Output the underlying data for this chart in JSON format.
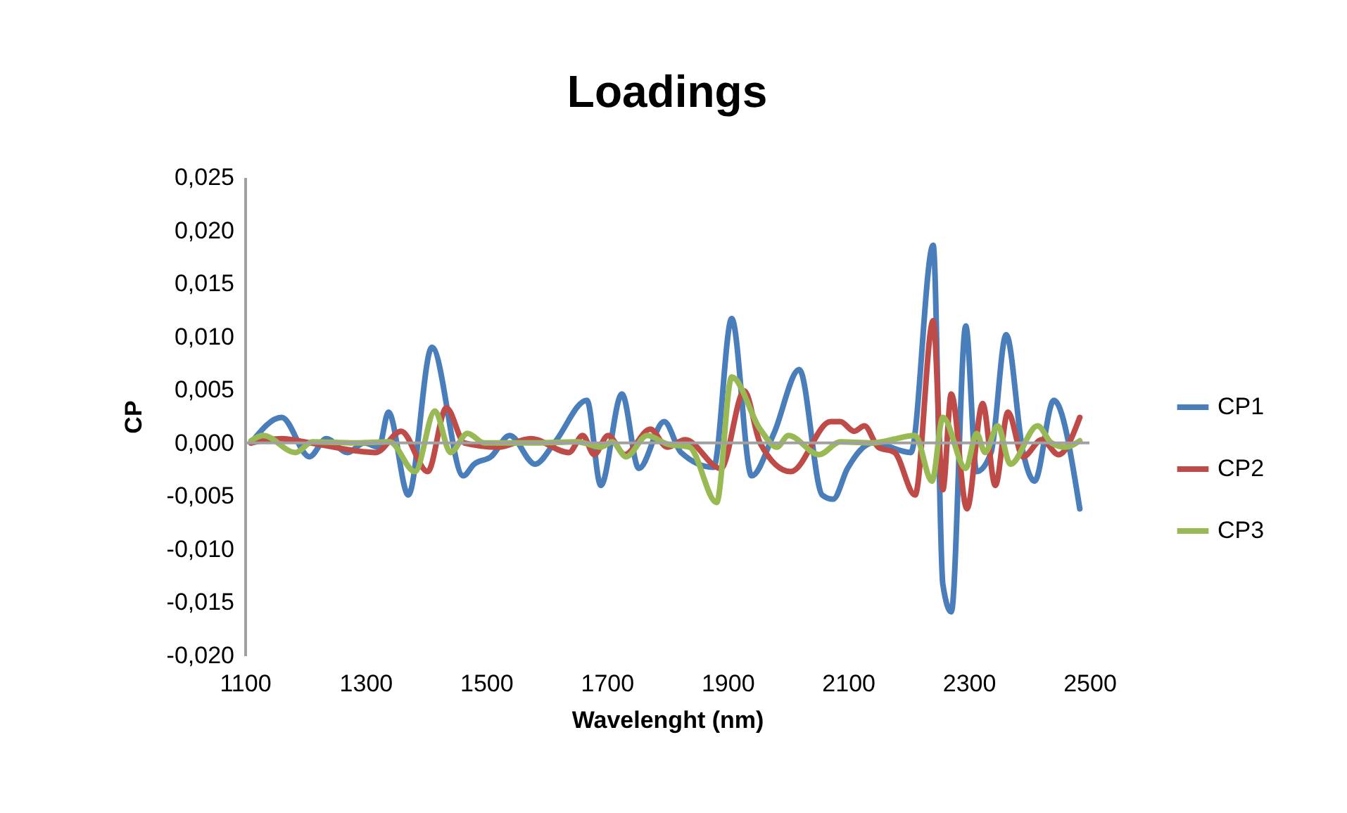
{
  "chart_data": {
    "type": "line",
    "title": "Loadings",
    "xlabel": "Wavelenght (nm)",
    "ylabel": "CP",
    "xlim": [
      1100,
      2500
    ],
    "xticks": [
      1100,
      1300,
      1500,
      1700,
      1900,
      2100,
      2300,
      2500
    ],
    "ylim": [
      -0.02,
      0.025
    ],
    "yticks": [
      {
        "value": -0.02,
        "label": "-0,020"
      },
      {
        "value": -0.015,
        "label": "-0,015"
      },
      {
        "value": -0.01,
        "label": "-0,010"
      },
      {
        "value": -0.005,
        "label": "-0,005"
      },
      {
        "value": 0,
        "label": "0,000"
      },
      {
        "value": 0.005,
        "label": "0,005"
      },
      {
        "value": 0.01,
        "label": "0,010"
      },
      {
        "value": 0.015,
        "label": "0,015"
      },
      {
        "value": 0.02,
        "label": "0,020"
      },
      {
        "value": 0.025,
        "label": "0,025"
      }
    ],
    "grid": false,
    "legend": "right",
    "line_style": "solid",
    "marker": "none",
    "ref_lines": [
      {
        "axis": "y",
        "value": 0,
        "color": "#a0a0a0"
      }
    ],
    "series": [
      {
        "name": "CP1",
        "color": "#4a7ebb",
        "x": [
          1110,
          1161,
          1207,
          1235,
          1270,
          1298,
          1322,
          1338,
          1371,
          1410,
          1462,
          1480,
          1508,
          1539,
          1581,
          1613,
          1667,
          1690,
          1725,
          1753,
          1795,
          1823,
          1877,
          1907,
          1940,
          1977,
          2019,
          2057,
          2075,
          2099,
          2141,
          2204,
          2241,
          2257,
          2271,
          2295,
          2313,
          2337,
          2362,
          2390,
          2409,
          2441,
          2484
        ],
        "values": [
          0,
          0.0024,
          -0.0013,
          0.0004,
          -0.0009,
          0,
          -0.0004,
          0.0029,
          -0.0049,
          0.009,
          -0.0031,
          -0.002,
          -0.0013,
          0.0007,
          -0.002,
          0,
          0.004,
          -0.004,
          0.0046,
          -0.0024,
          0.002,
          -0.0009,
          -0.0023,
          0.0117,
          -0.0031,
          0.0009,
          0.0069,
          -0.0049,
          -0.0053,
          -0.0024,
          0,
          -0.0009,
          0.0186,
          -0.0133,
          -0.0159,
          0.011,
          -0.0027,
          -0.0009,
          0.0102,
          -0.0009,
          -0.0036,
          0.004,
          -0.0062
        ]
      },
      {
        "name": "CP2",
        "color": "#be4b48",
        "x": [
          1110,
          1161,
          1209,
          1317,
          1359,
          1403,
          1434,
          1464,
          1520,
          1574,
          1637,
          1660,
          1679,
          1702,
          1730,
          1772,
          1800,
          1830,
          1889,
          1928,
          1954,
          2005,
          2071,
          2087,
          2110,
          2127,
          2150,
          2177,
          2211,
          2241,
          2257,
          2271,
          2297,
          2323,
          2344,
          2365,
          2390,
          2421,
          2449,
          2484
        ],
        "values": [
          0,
          0.0004,
          0,
          -0.0009,
          0.0011,
          -0.0027,
          0.0033,
          0,
          -0.0004,
          0.0004,
          -0.0009,
          0.0007,
          -0.0011,
          0.0007,
          -0.0011,
          0.0013,
          -0.0004,
          0.0003,
          -0.0024,
          0.0049,
          0,
          -0.0027,
          0.002,
          0.002,
          0.0011,
          0.0016,
          -0.0004,
          -0.0009,
          -0.0049,
          0.0115,
          -0.0044,
          0.0046,
          -0.0062,
          0.0037,
          -0.004,
          0.0029,
          -0.0013,
          0.0003,
          -0.0011,
          0.0024
        ]
      },
      {
        "name": "CP3",
        "color": "#98b954",
        "x": [
          1110,
          1130,
          1184,
          1212,
          1282,
          1340,
          1382,
          1415,
          1441,
          1469,
          1497,
          1581,
          1651,
          1690,
          1709,
          1732,
          1767,
          1800,
          1837,
          1882,
          1907,
          1954,
          1982,
          2001,
          2052,
          2087,
          2141,
          2211,
          2239,
          2257,
          2295,
          2313,
          2327,
          2348,
          2369,
          2414,
          2437,
          2460,
          2484
        ],
        "values": [
          0.0002,
          0.0007,
          -0.0009,
          0.0001,
          0,
          0.0001,
          -0.0027,
          0.003,
          -0.0009,
          0.0009,
          0,
          0,
          0.0001,
          -0.0004,
          0.0001,
          -0.0013,
          0.0007,
          -0.0001,
          -0.0004,
          -0.0056,
          0.0062,
          0.0013,
          -0.0004,
          0.0007,
          -0.0011,
          0.0001,
          0,
          0.0007,
          -0.0036,
          0.0024,
          -0.0024,
          0.0009,
          -0.0009,
          0.0016,
          -0.002,
          0.0016,
          0,
          -0.0004,
          0.0002
        ]
      }
    ]
  }
}
